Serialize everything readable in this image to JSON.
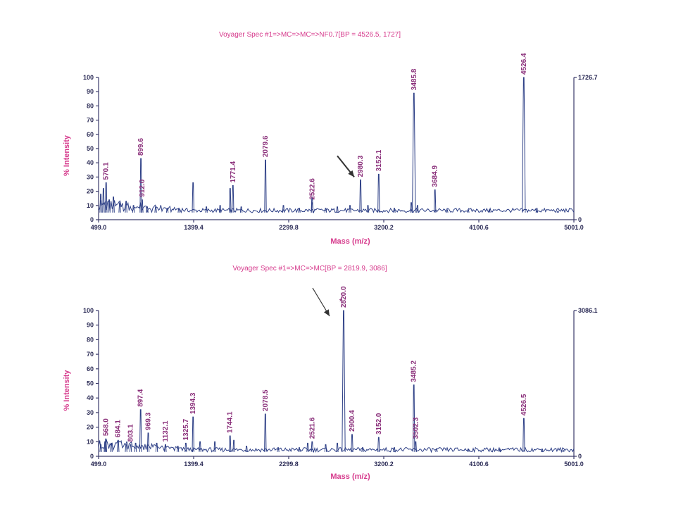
{
  "chart_data": [
    {
      "type": "line",
      "title": "Voyager Spec #1=>MC=>MC=>NF0.7[BP = 4526.5, 1727]",
      "xlabel": "Mass (m/z)",
      "ylabel": "% Intensity",
      "xlim": [
        499.0,
        5001.0
      ],
      "ylim": [
        0,
        100
      ],
      "x_ticks": [
        499.0,
        1399.4,
        2299.8,
        3200.2,
        4100.6,
        5001.0
      ],
      "y_ticks": [
        0,
        10,
        20,
        30,
        40,
        50,
        60,
        70,
        80,
        90,
        100
      ],
      "max_intensity_label": "1726.7",
      "baseline": 5,
      "peaks": [
        {
          "x": 520,
          "y": 18,
          "label": ""
        },
        {
          "x": 545,
          "y": 22,
          "label": ""
        },
        {
          "x": 570.1,
          "y": 26,
          "label": "570.1"
        },
        {
          "x": 600,
          "y": 14,
          "label": ""
        },
        {
          "x": 640,
          "y": 16,
          "label": ""
        },
        {
          "x": 700,
          "y": 12,
          "label": ""
        },
        {
          "x": 760,
          "y": 13,
          "label": ""
        },
        {
          "x": 830,
          "y": 10,
          "label": ""
        },
        {
          "x": 899.6,
          "y": 43,
          "label": "899.6"
        },
        {
          "x": 912.0,
          "y": 14,
          "label": "912.0"
        },
        {
          "x": 960,
          "y": 9,
          "label": ""
        },
        {
          "x": 1040,
          "y": 9,
          "label": ""
        },
        {
          "x": 1150,
          "y": 8,
          "label": ""
        },
        {
          "x": 1260,
          "y": 8,
          "label": ""
        },
        {
          "x": 1394,
          "y": 26,
          "label": ""
        },
        {
          "x": 1520,
          "y": 9,
          "label": ""
        },
        {
          "x": 1650,
          "y": 10,
          "label": ""
        },
        {
          "x": 1745,
          "y": 22,
          "label": ""
        },
        {
          "x": 1771.4,
          "y": 24,
          "label": "1771.4"
        },
        {
          "x": 1850,
          "y": 9,
          "label": ""
        },
        {
          "x": 2079.6,
          "y": 42,
          "label": "2079.6"
        },
        {
          "x": 2250,
          "y": 10,
          "label": ""
        },
        {
          "x": 2400,
          "y": 8,
          "label": ""
        },
        {
          "x": 2521,
          "y": 16,
          "label": ""
        },
        {
          "x": 2522.6,
          "y": 12,
          "label": "2522.6"
        },
        {
          "x": 2650,
          "y": 8,
          "label": ""
        },
        {
          "x": 2760,
          "y": 9,
          "label": ""
        },
        {
          "x": 2880,
          "y": 10,
          "label": ""
        },
        {
          "x": 2980.3,
          "y": 28,
          "label": "2980.3"
        },
        {
          "x": 3050,
          "y": 10,
          "label": ""
        },
        {
          "x": 3152.1,
          "y": 32,
          "label": "3152.1"
        },
        {
          "x": 3300,
          "y": 8,
          "label": ""
        },
        {
          "x": 3460,
          "y": 12,
          "label": ""
        },
        {
          "x": 3485.8,
          "y": 89,
          "label": "3485.8"
        },
        {
          "x": 3520,
          "y": 10,
          "label": ""
        },
        {
          "x": 3684.9,
          "y": 21,
          "label": "3684.9"
        },
        {
          "x": 3800,
          "y": 7,
          "label": ""
        },
        {
          "x": 4000,
          "y": 7,
          "label": ""
        },
        {
          "x": 4200,
          "y": 7,
          "label": ""
        },
        {
          "x": 4526.4,
          "y": 100,
          "label": "4526.4"
        },
        {
          "x": 4650,
          "y": 8,
          "label": ""
        },
        {
          "x": 4850,
          "y": 6,
          "label": ""
        }
      ],
      "arrow_target_x": 2980.3
    },
    {
      "type": "line",
      "title": "Voyager Spec #1=>MC=>MC[BP = 2819.9, 3086]",
      "xlabel": "Mass (m/z)",
      "ylabel": "% Intensity",
      "xlim": [
        499.0,
        5001.0
      ],
      "ylim": [
        0,
        100
      ],
      "x_ticks": [
        499.0,
        1399.4,
        2299.8,
        3200.2,
        4100.6,
        5001.0
      ],
      "y_ticks": [
        0,
        10,
        20,
        30,
        40,
        50,
        60,
        70,
        80,
        90,
        100
      ],
      "max_intensity_label": "3086.1",
      "baseline": 3,
      "peaks": [
        {
          "x": 520,
          "y": 8,
          "label": ""
        },
        {
          "x": 560,
          "y": 10,
          "label": ""
        },
        {
          "x": 568.0,
          "y": 12,
          "label": "568.0"
        },
        {
          "x": 620,
          "y": 9,
          "label": ""
        },
        {
          "x": 684.1,
          "y": 11,
          "label": "684.1"
        },
        {
          "x": 760,
          "y": 8,
          "label": ""
        },
        {
          "x": 803.1,
          "y": 8,
          "label": "803.1"
        },
        {
          "x": 850,
          "y": 9,
          "label": ""
        },
        {
          "x": 897.4,
          "y": 32,
          "label": "897.4"
        },
        {
          "x": 969.3,
          "y": 16,
          "label": "969.3"
        },
        {
          "x": 1050,
          "y": 9,
          "label": ""
        },
        {
          "x": 1132.1,
          "y": 8,
          "label": "1132.1"
        },
        {
          "x": 1250,
          "y": 7,
          "label": ""
        },
        {
          "x": 1325.7,
          "y": 9,
          "label": "1325.7"
        },
        {
          "x": 1394.3,
          "y": 27,
          "label": "1394.3"
        },
        {
          "x": 1460,
          "y": 10,
          "label": ""
        },
        {
          "x": 1600,
          "y": 10,
          "label": ""
        },
        {
          "x": 1744.1,
          "y": 14,
          "label": "1744.1"
        },
        {
          "x": 1780,
          "y": 11,
          "label": ""
        },
        {
          "x": 1900,
          "y": 7,
          "label": ""
        },
        {
          "x": 2078.5,
          "y": 29,
          "label": "2078.5"
        },
        {
          "x": 2200,
          "y": 6,
          "label": ""
        },
        {
          "x": 2400,
          "y": 6,
          "label": ""
        },
        {
          "x": 2480,
          "y": 9,
          "label": ""
        },
        {
          "x": 2521.6,
          "y": 10,
          "label": "2521.6"
        },
        {
          "x": 2650,
          "y": 8,
          "label": ""
        },
        {
          "x": 2760,
          "y": 9,
          "label": ""
        },
        {
          "x": 2820.0,
          "y": 100,
          "label": "2820.0"
        },
        {
          "x": 2900.4,
          "y": 15,
          "label": "2900.4"
        },
        {
          "x": 3000,
          "y": 6,
          "label": ""
        },
        {
          "x": 3152.0,
          "y": 13,
          "label": "3152.0"
        },
        {
          "x": 3300,
          "y": 6,
          "label": ""
        },
        {
          "x": 3485.2,
          "y": 49,
          "label": "3485.2"
        },
        {
          "x": 3502.3,
          "y": 10,
          "label": "3502.3"
        },
        {
          "x": 3700,
          "y": 5,
          "label": ""
        },
        {
          "x": 4000,
          "y": 5,
          "label": ""
        },
        {
          "x": 4300,
          "y": 5,
          "label": ""
        },
        {
          "x": 4526.5,
          "y": 26,
          "label": "4526.5"
        },
        {
          "x": 4700,
          "y": 5,
          "label": ""
        },
        {
          "x": 4900,
          "y": 4,
          "label": ""
        }
      ],
      "arrow_target_x": 2820.0,
      "marker_text": "*",
      "marker_x": 2820.0
    }
  ],
  "colors": {
    "trace": "#2d3f86",
    "title": "#d63a8c",
    "peak_label": "#8a2f7a",
    "axis": "#3a3a6a"
  }
}
